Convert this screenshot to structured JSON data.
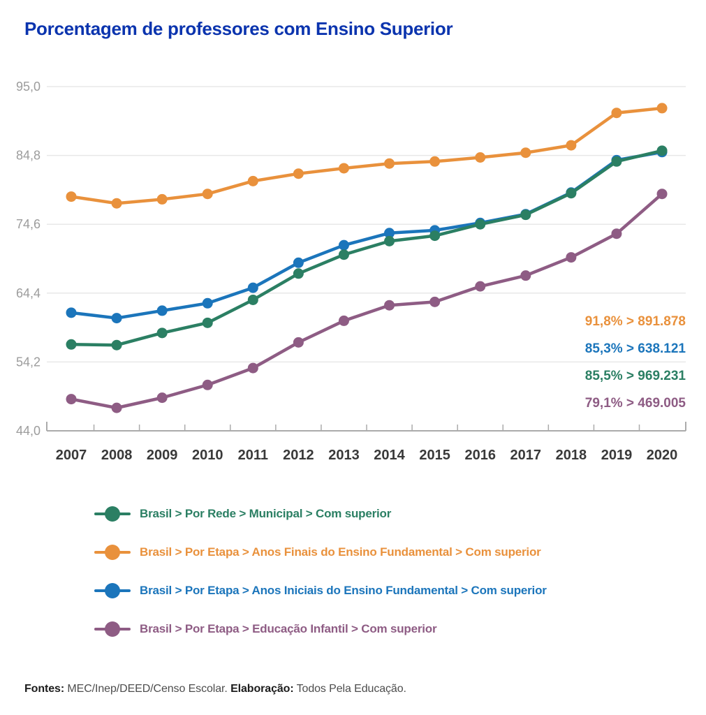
{
  "title": "Porcentagem de professores com Ensino Superior",
  "title_color": "#0B34AE",
  "chart_data": {
    "type": "line",
    "x": [
      "2007",
      "2008",
      "2009",
      "2010",
      "2011",
      "2012",
      "2013",
      "2014",
      "2015",
      "2016",
      "2017",
      "2018",
      "2019",
      "2020"
    ],
    "ylim": [
      44.0,
      95.0
    ],
    "y_ticks": [
      {
        "value": 44.0,
        "label": "44,0"
      },
      {
        "value": 54.2,
        "label": "54,2"
      },
      {
        "value": 64.4,
        "label": "64,4"
      },
      {
        "value": 74.6,
        "label": "74,6"
      },
      {
        "value": 84.8,
        "label": "84,8"
      },
      {
        "value": 95.0,
        "label": "95,0"
      }
    ],
    "grid": "horizontal",
    "legend_position": "bottom-left",
    "series": [
      {
        "name": "Brasil > Por Rede > Municipal > Com superior",
        "color": "#2B7F63",
        "values": [
          56.8,
          56.7,
          58.5,
          60.0,
          63.4,
          67.3,
          70.1,
          72.1,
          72.9,
          74.6,
          76.0,
          79.2,
          83.9,
          85.5
        ],
        "end_label": "85,5% > 969.231"
      },
      {
        "name": "Brasil > Por Etapa > Anos Finais do Ensino Fundamental > Com superior",
        "color": "#E9913C",
        "values": [
          78.7,
          77.7,
          78.3,
          79.1,
          81.0,
          82.1,
          82.9,
          83.6,
          83.9,
          84.5,
          85.2,
          86.3,
          91.1,
          91.8
        ],
        "end_label": "91,8% > 891.878"
      },
      {
        "name": "Brasil > Por Etapa > Anos Iniciais do Ensino Fundamental > Com superior",
        "color": "#1B75BB",
        "values": [
          61.5,
          60.7,
          61.8,
          62.9,
          65.2,
          68.9,
          71.5,
          73.3,
          73.7,
          74.8,
          76.1,
          79.3,
          84.1,
          85.3
        ],
        "end_label": "85,3% > 638.121"
      },
      {
        "name": "Brasil > Por Etapa > Educação Infantil > Com superior",
        "color": "#8E5C84",
        "values": [
          48.7,
          47.4,
          48.9,
          50.8,
          53.3,
          57.1,
          60.3,
          62.6,
          63.1,
          65.4,
          67.0,
          69.7,
          73.2,
          79.1
        ],
        "end_label": "79,1% > 469.005"
      }
    ],
    "annotations": [
      {
        "text": "91,8% > 891.878",
        "color": "#E9913C"
      },
      {
        "text": "85,3% > 638.121",
        "color": "#1B75BB"
      },
      {
        "text": "85,5% > 969.231",
        "color": "#2B7F63"
      },
      {
        "text": "79,1% > 469.005",
        "color": "#8E5C84"
      }
    ],
    "style": {
      "grid_color": "#E8E8E8",
      "axis_color": "#ABABAB",
      "y_label_color": "#9C9C9C",
      "x_label_color": "#393939"
    }
  },
  "footer": {
    "sources_label": "Fontes:",
    "sources_text": " MEC/Inep/DEED/Censo Escolar. ",
    "elaboration_label": "Elaboração:",
    "elaboration_text": " Todos Pela Educação."
  }
}
